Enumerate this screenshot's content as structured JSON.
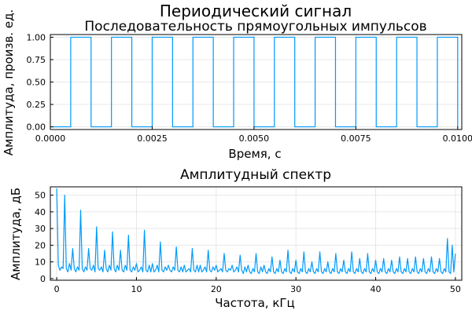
{
  "figure_title": "Периодический сигнал",
  "chart_data": [
    {
      "type": "line",
      "title": "Последовательность прямоугольных импульсов",
      "xlabel": "Время, с",
      "ylabel": "Амплитуда, произв. ед.",
      "xlim": [
        0,
        0.0101
      ],
      "ylim": [
        -0.03,
        1.03
      ],
      "xticks": [
        0.0,
        0.0025,
        0.005,
        0.0075,
        0.01
      ],
      "xtick_labels": [
        "0.0000",
        "0.0025",
        "0.0050",
        "0.0075",
        "0.0100"
      ],
      "yticks": [
        0,
        0.25,
        0.5,
        0.75,
        1
      ],
      "ytick_labels": [
        "0.00",
        "0.25",
        "0.50",
        "0.75",
        "1.00"
      ],
      "grid": true,
      "legend": "none",
      "color": "#009AFA",
      "series": [
        {
          "step": true,
          "x": [
            0,
            0.0005,
            0.001,
            0.0015,
            0.002,
            0.0025,
            0.003,
            0.0035,
            0.004,
            0.0045,
            0.005,
            0.0055,
            0.006,
            0.0065,
            0.007,
            0.0075,
            0.008,
            0.0085,
            0.009,
            0.0095,
            0.01
          ],
          "y": [
            0,
            1,
            0,
            1,
            0,
            1,
            0,
            1,
            0,
            1,
            0,
            1,
            0,
            1,
            0,
            1,
            0,
            1,
            0,
            1,
            0
          ]
        }
      ]
    },
    {
      "type": "line",
      "title": "Амплитудный спектр",
      "xlabel": "Частота, кГц",
      "ylabel": "Амплитуда, дБ",
      "xlim": [
        -0.8,
        50.8
      ],
      "ylim": [
        -1,
        55
      ],
      "xticks": [
        0,
        10,
        20,
        30,
        40,
        50
      ],
      "xtick_labels": [
        "0",
        "10",
        "20",
        "30",
        "40",
        "50"
      ],
      "yticks": [
        0,
        10,
        20,
        30,
        40,
        50
      ],
      "ytick_labels": [
        "0",
        "10",
        "20",
        "30",
        "40",
        "50"
      ],
      "grid": true,
      "legend": "none",
      "color": "#009AFA",
      "series": [
        {
          "x": [
            0,
            0.2,
            0.4,
            0.6,
            0.8,
            1.0,
            1.2,
            1.4,
            1.6,
            1.8,
            2.0,
            2.2,
            2.4,
            2.6,
            2.8,
            3.0,
            3.2,
            3.4,
            3.6,
            3.8,
            4.0,
            4.2,
            4.4,
            4.6,
            4.8,
            5.0,
            5.2,
            5.4,
            5.6,
            5.8,
            6.0,
            6.2,
            6.4,
            6.6,
            6.8,
            7.0,
            7.2,
            7.4,
            7.6,
            7.8,
            8.0,
            8.2,
            8.4,
            8.6,
            8.8,
            9.0,
            9.2,
            9.4,
            9.6,
            9.8,
            10.0,
            10.2,
            10.4,
            10.6,
            10.8,
            11.0,
            11.2,
            11.4,
            11.6,
            11.8,
            12.0,
            12.2,
            12.4,
            12.6,
            12.8,
            13.0,
            13.2,
            13.4,
            13.6,
            13.8,
            14.0,
            14.2,
            14.4,
            14.6,
            14.8,
            15.0,
            15.2,
            15.4,
            15.6,
            15.8,
            16.0,
            16.2,
            16.4,
            16.6,
            16.8,
            17.0,
            17.2,
            17.4,
            17.6,
            17.8,
            18.0,
            18.2,
            18.4,
            18.6,
            18.8,
            19.0,
            19.2,
            19.4,
            19.6,
            19.8,
            20.0,
            20.2,
            20.4,
            20.6,
            20.8,
            21.0,
            21.2,
            21.4,
            21.6,
            21.8,
            22.0,
            22.2,
            22.4,
            22.6,
            22.8,
            23.0,
            23.2,
            23.4,
            23.6,
            23.8,
            24.0,
            24.2,
            24.4,
            24.6,
            24.8,
            25.0,
            25.2,
            25.4,
            25.6,
            25.8,
            26.0,
            26.2,
            26.4,
            26.6,
            26.8,
            27.0,
            27.2,
            27.4,
            27.6,
            27.8,
            28.0,
            28.2,
            28.4,
            28.6,
            28.8,
            29.0,
            29.2,
            29.4,
            29.6,
            29.8,
            30.0,
            30.2,
            30.4,
            30.6,
            30.8,
            31.0,
            31.2,
            31.4,
            31.6,
            31.8,
            32.0,
            32.2,
            32.4,
            32.6,
            32.8,
            33.0,
            33.2,
            33.4,
            33.6,
            33.8,
            34.0,
            34.2,
            34.4,
            34.6,
            34.8,
            35.0,
            35.2,
            35.4,
            35.6,
            35.8,
            36.0,
            36.2,
            36.4,
            36.6,
            36.8,
            37.0,
            37.2,
            37.4,
            37.6,
            37.8,
            38.0,
            38.2,
            38.4,
            38.6,
            38.8,
            39.0,
            39.2,
            39.4,
            39.6,
            39.8,
            40.0,
            40.2,
            40.4,
            40.6,
            40.8,
            41.0,
            41.2,
            41.4,
            41.6,
            41.8,
            42.0,
            42.2,
            42.4,
            42.6,
            42.8,
            43.0,
            43.2,
            43.4,
            43.6,
            43.8,
            44.0,
            44.2,
            44.4,
            44.6,
            44.8,
            45.0,
            45.2,
            45.4,
            45.6,
            45.8,
            46.0,
            46.2,
            46.4,
            46.6,
            46.8,
            47.0,
            47.2,
            47.4,
            47.6,
            47.8,
            48.0,
            48.2,
            48.4,
            48.6,
            48.8,
            49.0,
            49.2,
            49.4,
            49.6,
            49.8,
            50.0
          ],
          "y": [
            54,
            8,
            5,
            7,
            6,
            50,
            6,
            4,
            9,
            5,
            18,
            6,
            4,
            7,
            5,
            41,
            6,
            4,
            7,
            5,
            18,
            6,
            5,
            8,
            4,
            31,
            6,
            5,
            7,
            4,
            17,
            6,
            4,
            8,
            5,
            28,
            6,
            4,
            8,
            5,
            17,
            5,
            4,
            8,
            5,
            26,
            5,
            4,
            7,
            5,
            9,
            4,
            5,
            7,
            4,
            29,
            5,
            4,
            8,
            4,
            9,
            4,
            5,
            8,
            4,
            22,
            5,
            4,
            7,
            5,
            8,
            5,
            4,
            7,
            5,
            19,
            5,
            4,
            7,
            4,
            8,
            4,
            5,
            6,
            4,
            18,
            5,
            4,
            8,
            4,
            8,
            4,
            5,
            7,
            4,
            17,
            5,
            4,
            7,
            5,
            8,
            4,
            5,
            6,
            4,
            15,
            5,
            4,
            6,
            5,
            8,
            4,
            5,
            7,
            4,
            14,
            5,
            3,
            7,
            4,
            8,
            4,
            3,
            6,
            4,
            15,
            4,
            3,
            7,
            4,
            8,
            4,
            3,
            6,
            4,
            13,
            4,
            3,
            6,
            4,
            11,
            4,
            3,
            6,
            4,
            17,
            4,
            3,
            6,
            4,
            11,
            4,
            3,
            6,
            4,
            16,
            4,
            3,
            6,
            4,
            10,
            4,
            3,
            6,
            4,
            16,
            4,
            3,
            6,
            4,
            10,
            4,
            3,
            6,
            4,
            15,
            4,
            3,
            6,
            4,
            11,
            4,
            3,
            6,
            4,
            16,
            4,
            3,
            6,
            4,
            12,
            4,
            3,
            6,
            4,
            15,
            4,
            3,
            6,
            4,
            11,
            4,
            3,
            6,
            4,
            12,
            4,
            3,
            6,
            4,
            11,
            4,
            3,
            6,
            4,
            13,
            4,
            3,
            6,
            4,
            12,
            4,
            3,
            6,
            4,
            13,
            4,
            3,
            6,
            4,
            12,
            4,
            3,
            6,
            4,
            13,
            4,
            3,
            6,
            4,
            12,
            4,
            3,
            6,
            4,
            24,
            4,
            3,
            20,
            4,
            15
          ]
        }
      ]
    }
  ]
}
